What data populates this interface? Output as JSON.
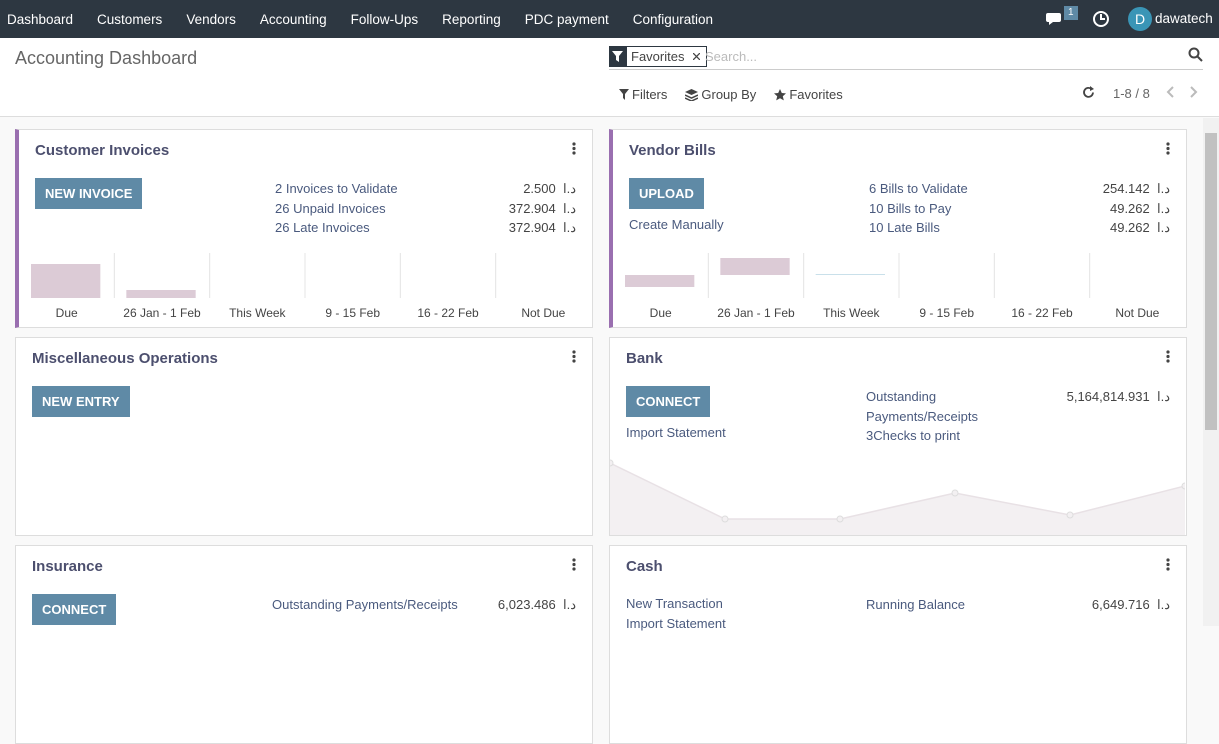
{
  "navbar": {
    "menu": [
      "Dashboard",
      "Customers",
      "Vendors",
      "Accounting",
      "Follow-Ups",
      "Reporting",
      "PDC payment",
      "Configuration"
    ],
    "message_count": 1,
    "avatar_initial": "D",
    "user": "dawatech"
  },
  "control_panel": {
    "title": "Accounting Dashboard",
    "facet": "Favorites",
    "search_placeholder": "Search...",
    "buttons": [
      "Filters",
      "Group By",
      "Favorites"
    ],
    "pager": "1-8 / 8"
  },
  "cards": [
    {
      "title": "Customer Invoices",
      "buttons": [
        "NEW INVOICE"
      ],
      "stats": [
        {
          "label": "2 Invoices to Validate",
          "amount": "2.500",
          "currency": "د.ا"
        },
        {
          "label": "26 Unpaid Invoices",
          "amount": "372.904",
          "currency": "د.ا"
        },
        {
          "label": "26 Late Invoices",
          "amount": "372.904",
          "currency": "د.ا"
        }
      ],
      "graph": {
        "type": "bar",
        "categories": [
          "Due",
          "26 Jan - 1 Feb",
          "This Week",
          "9 - 15 Feb",
          "16 - 22 Feb",
          "Not Due"
        ],
        "values": [
          34,
          8,
          0,
          0,
          0,
          0
        ],
        "ylim": [
          0,
          45
        ],
        "colors": [
          "#dccbd6",
          "#dccbd6",
          "#d4e6ee",
          "#d4e6ee",
          "#d4e6ee",
          "#d4e6ee"
        ]
      }
    },
    {
      "title": "Vendor Bills",
      "buttons": [
        "UPLOAD"
      ],
      "links": [
        "Create Manually"
      ],
      "stats": [
        {
          "label": "6 Bills to Validate",
          "amount": "254.142",
          "currency": "د.ا"
        },
        {
          "label": "10 Bills to Pay",
          "amount": "49.262",
          "currency": "د.ا"
        },
        {
          "label": "10 Late Bills",
          "amount": "49.262",
          "currency": "د.ا"
        }
      ],
      "graph": {
        "type": "bar",
        "categories": [
          "Due",
          "26 Jan - 1 Feb",
          "This Week",
          "9 - 15 Feb",
          "16 - 22 Feb",
          "Not Due"
        ],
        "values": [
          -12,
          17,
          1,
          0,
          0,
          0
        ],
        "ylim": [
          -23,
          22
        ],
        "colors": [
          "#dccbd6",
          "#dccbd6",
          "#c9e0ea",
          "#d4e6ee",
          "#d4e6ee",
          "#d4e6ee"
        ]
      }
    },
    {
      "title": "Miscellaneous Operations",
      "buttons": [
        "NEW ENTRY"
      ]
    },
    {
      "title": "Bank",
      "buttons": [
        "CONNECT"
      ],
      "links": [
        "Import Statement"
      ],
      "stats": [
        {
          "label": "Outstanding Payments/Receipts",
          "amount": "5,164,814.931",
          "currency": "د.ا"
        },
        {
          "label": "3Checks to print"
        }
      ],
      "graph": {
        "type": "line",
        "values": [
          72,
          16,
          16,
          42,
          20,
          49
        ],
        "ylim": [
          0,
          80
        ]
      }
    },
    {
      "title": "Insurance",
      "buttons": [
        "CONNECT"
      ],
      "stats": [
        {
          "label": "Outstanding Payments/Receipts",
          "amount": "6,023.486",
          "currency": "د.ا"
        }
      ]
    },
    {
      "title": "Cash",
      "links": [
        "New Transaction",
        "Import Statement"
      ],
      "stats": [
        {
          "label": "Running Balance",
          "amount": "6,649.716",
          "currency": "د.ا"
        }
      ]
    }
  ]
}
